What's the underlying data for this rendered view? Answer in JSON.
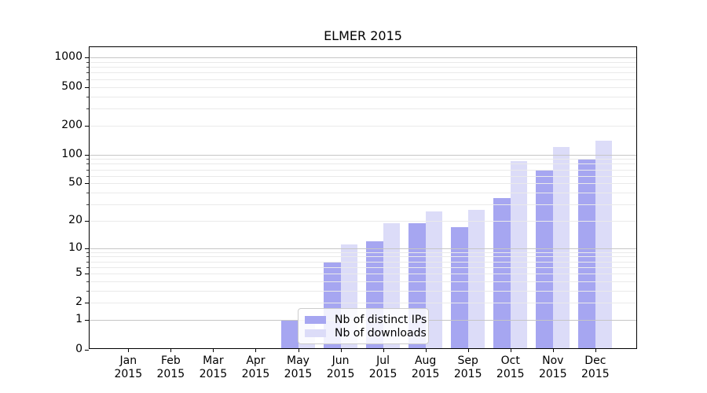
{
  "title": "ELMER 2015",
  "chart_data": {
    "type": "bar",
    "title": "ELMER 2015",
    "categories": [
      "Jan 2015",
      "Feb 2015",
      "Mar 2015",
      "Apr 2015",
      "May 2015",
      "Jun 2015",
      "Jul 2015",
      "Aug 2015",
      "Sep 2015",
      "Oct 2015",
      "Nov 2015",
      "Dec 2015"
    ],
    "series": [
      {
        "name": "Nb of distinct IPs",
        "color": "#a6a6f1",
        "values": [
          0,
          0,
          0,
          0,
          1,
          7,
          12,
          19,
          17,
          35,
          70,
          88
        ]
      },
      {
        "name": "Nb of downloads",
        "color": "#dcdcf8",
        "values": [
          0,
          0,
          0,
          0,
          1,
          11,
          19,
          25,
          26,
          85,
          120,
          140
        ]
      }
    ],
    "xlabel": "",
    "ylabel": "",
    "yscale": "log1p",
    "ylim": [
      0,
      1300
    ],
    "yticks": [
      0,
      1,
      2,
      5,
      10,
      20,
      50,
      100,
      200,
      500,
      1000
    ],
    "minor_gridlines": [
      3,
      4,
      6,
      7,
      8,
      9,
      30,
      40,
      60,
      70,
      80,
      90,
      300,
      400,
      600,
      700,
      800,
      900
    ],
    "major_gridline_values": [
      1,
      10,
      100,
      1000
    ],
    "grid": true,
    "legend_position": "lower center"
  },
  "colors": {
    "major_grid": "#c6c6c6",
    "minor_grid": "#eaeaea",
    "spine": "#000000",
    "legend_border": "#cccccc"
  }
}
